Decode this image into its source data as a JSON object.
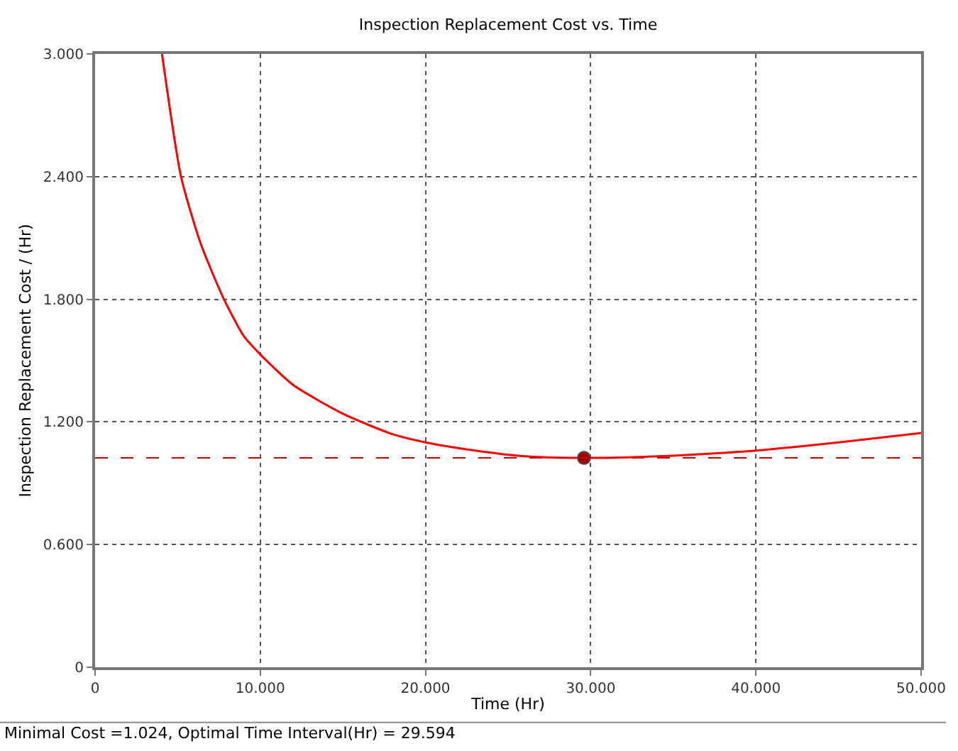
{
  "chart_data": {
    "type": "line",
    "title": "Inspection Replacement Cost vs. Time",
    "xlabel": "Time (Hr)",
    "ylabel": "Inspection Replacement Cost / (Hr)",
    "series": [
      {
        "color": "#ff0000",
        "x": [
          4.05,
          5.2,
          6.4,
          7.8,
          9,
          10,
          12,
          15,
          18,
          20,
          23,
          26,
          29.594,
          32,
          35,
          40,
          45,
          50
        ],
        "values": [
          3.0,
          2.4,
          2.07,
          1.8,
          1.62,
          1.53,
          1.38,
          1.24,
          1.14,
          1.1,
          1.06,
          1.032,
          1.024,
          1.026,
          1.035,
          1.06,
          1.1,
          1.146
        ]
      },
      {
        "type": "scatter",
        "marker": "circle",
        "color": "#a00000",
        "x": [
          29.594
        ],
        "values": [
          1.024
        ]
      }
    ],
    "xlim": [
      0,
      50
    ],
    "ylim": [
      0,
      3
    ],
    "xticks": [
      {
        "value": 0,
        "label": "0"
      },
      {
        "value": 10,
        "label": "10.000"
      },
      {
        "value": 20,
        "label": "20.000"
      },
      {
        "value": 30,
        "label": "30.000"
      },
      {
        "value": 40,
        "label": "40.000"
      },
      {
        "value": 50,
        "label": "50.000"
      }
    ],
    "yticks": [
      {
        "value": 0,
        "label": "0"
      },
      {
        "value": 0.6,
        "label": "0.600"
      },
      {
        "value": 1.2,
        "label": "1.200"
      },
      {
        "value": 1.8,
        "label": "1.800"
      },
      {
        "value": 2.4,
        "label": "2.400"
      },
      {
        "value": 3,
        "label": "3.000"
      }
    ],
    "ref_lines": [
      {
        "axis": "y",
        "value": 1.024,
        "color": "#c00000",
        "line_style": "dashed"
      }
    ],
    "grid": true,
    "line_style": "solid",
    "marker": "none",
    "annotations": [
      "Minimal Cost =1.024, Optimal Time Interval(Hr) = 29.594"
    ]
  }
}
